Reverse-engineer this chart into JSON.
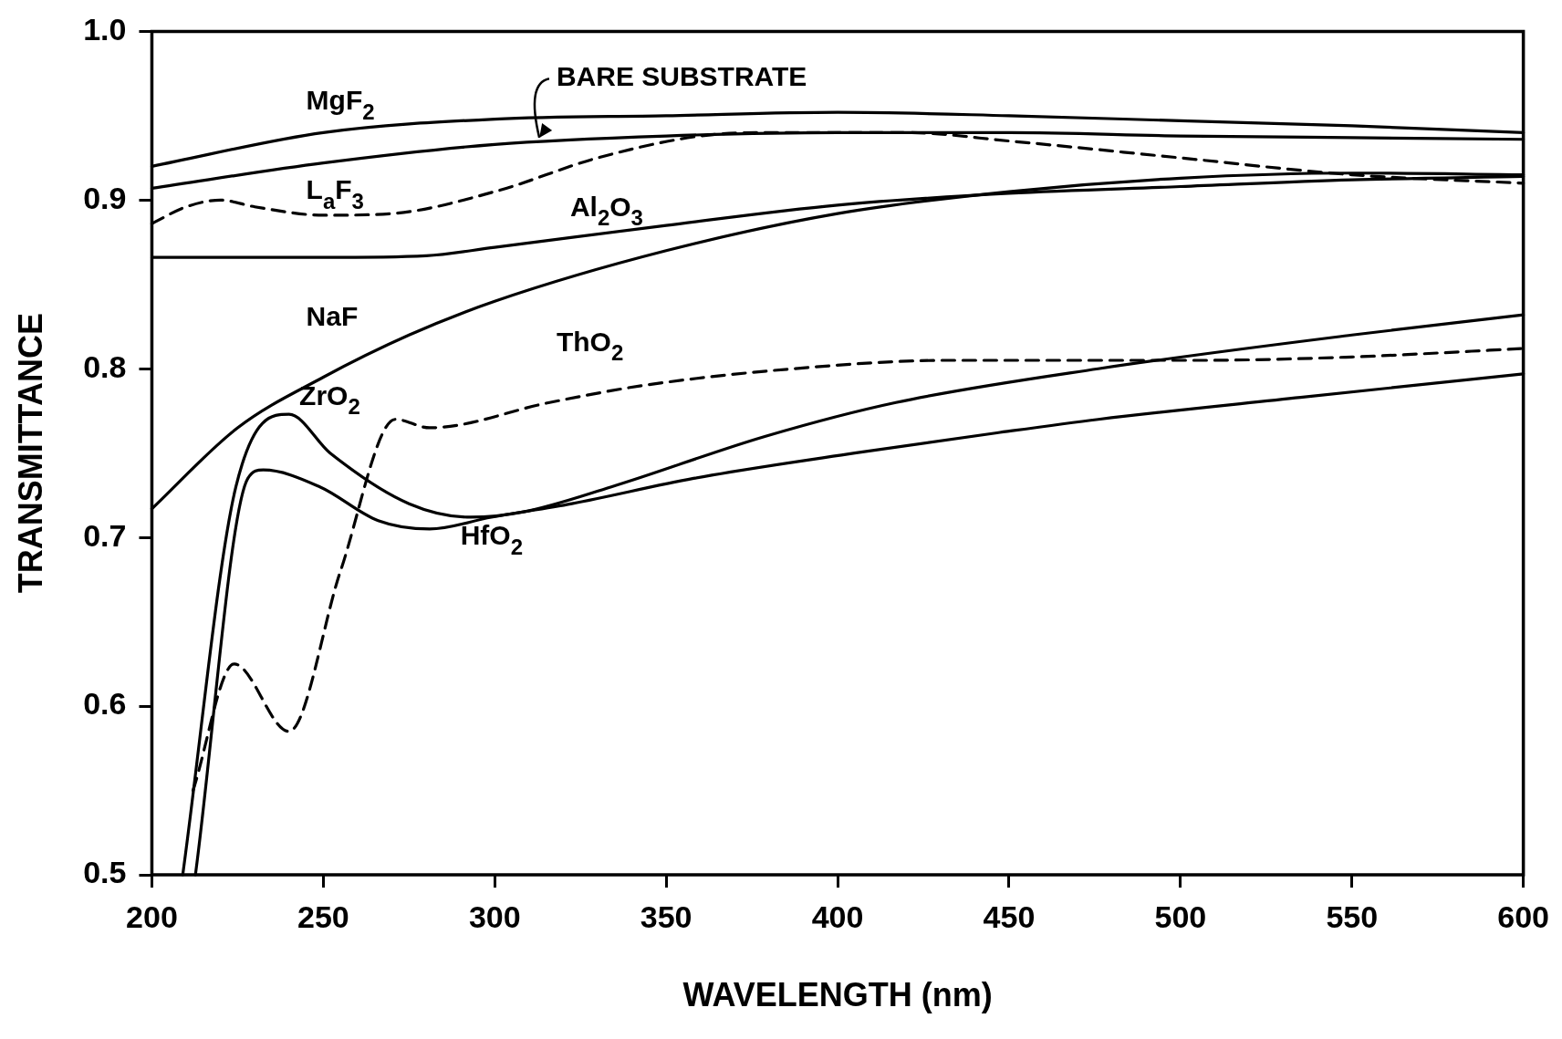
{
  "chart_data": {
    "type": "line",
    "xlabel": "WAVELENGTH (nm)",
    "ylabel": "TRANSMITTANCE",
    "xlim": [
      200,
      600
    ],
    "xticks": [
      200,
      250,
      300,
      350,
      400,
      450,
      500,
      550,
      600
    ],
    "ylim": [
      0.5,
      1.0
    ],
    "yticks": [
      {
        "value": 0.5,
        "label": "0.5"
      },
      {
        "value": 0.6,
        "label": "0.6"
      },
      {
        "value": 0.7,
        "label": "0.7"
      },
      {
        "value": 0.8,
        "label": "0.8"
      },
      {
        "value": 0.9,
        "label": "0.9"
      },
      {
        "value": 1.0,
        "label": "1.0"
      }
    ],
    "grid": false,
    "legend": false,
    "marker": "none",
    "series": [
      {
        "name": "MgF$_{2}$",
        "color": "#000000",
        "line_style": "solid",
        "x": [
          200,
          250,
          300,
          350,
          400,
          450,
          500,
          550,
          600
        ],
        "values": [
          0.92,
          0.94,
          0.948,
          0.95,
          0.952,
          0.95,
          0.947,
          0.944,
          0.94
        ]
      },
      {
        "name": "BARE SUBSTRATE",
        "color": "#000000",
        "line_style": "solid",
        "x": [
          200,
          250,
          300,
          350,
          400,
          450,
          500,
          550,
          600
        ],
        "values": [
          0.907,
          0.922,
          0.933,
          0.938,
          0.94,
          0.94,
          0.938,
          0.937,
          0.936
        ]
      },
      {
        "name": "L$_{a}$F$_{3}$",
        "color": "#000000",
        "line_style": "dashed",
        "x": [
          200,
          210,
          220,
          230,
          250,
          270,
          300,
          330,
          360,
          380,
          420,
          450,
          500,
          550,
          600
        ],
        "values": [
          0.886,
          0.896,
          0.9,
          0.896,
          0.891,
          0.892,
          0.905,
          0.925,
          0.938,
          0.94,
          0.94,
          0.935,
          0.925,
          0.915,
          0.91
        ]
      },
      {
        "name": "Al$_{2}$O$_{3}$",
        "color": "#000000",
        "line_style": "solid",
        "x": [
          200,
          250,
          280,
          300,
          350,
          400,
          450,
          500,
          550,
          600
        ],
        "values": [
          0.866,
          0.866,
          0.867,
          0.872,
          0.885,
          0.897,
          0.904,
          0.908,
          0.912,
          0.914
        ]
      },
      {
        "name": "NaF",
        "color": "#000000",
        "line_style": "solid",
        "x": [
          200,
          225,
          250,
          275,
          300,
          350,
          400,
          450,
          500,
          550,
          600
        ],
        "values": [
          0.717,
          0.765,
          0.795,
          0.82,
          0.84,
          0.87,
          0.892,
          0.905,
          0.913,
          0.916,
          0.915
        ]
      },
      {
        "name": "ThO$_{2}$",
        "color": "#000000",
        "line_style": "dashed",
        "x": [
          212,
          224,
          240,
          255,
          271,
          281,
          316,
          343,
          387,
          432,
          505,
          550,
          600
        ],
        "values": [
          0.55,
          0.625,
          0.585,
          0.68,
          0.77,
          0.765,
          0.78,
          0.79,
          0.8,
          0.805,
          0.805,
          0.807,
          0.812
        ]
      },
      {
        "name": "ZrO$_{2}$",
        "color": "#000000",
        "line_style": "solid",
        "x": [
          209,
          224.5,
          240,
          252,
          275,
          293,
          308,
          334,
          379,
          417,
          476,
          550,
          600
        ],
        "values": [
          0.5,
          0.73,
          0.773,
          0.75,
          0.72,
          0.712,
          0.715,
          0.73,
          0.76,
          0.78,
          0.8,
          0.82,
          0.832
        ]
      },
      {
        "name": "HfO$_{2}$",
        "color": "#000000",
        "line_style": "solid",
        "x": [
          212.7,
          228,
          232.5,
          249,
          266,
          281,
          299,
          322.5,
          358,
          405,
          446.5,
          476,
          535,
          600
        ],
        "values": [
          0.5,
          0.735,
          0.74,
          0.73,
          0.71,
          0.705,
          0.712,
          0.72,
          0.735,
          0.75,
          0.762,
          0.77,
          0.783,
          0.797
        ]
      }
    ]
  }
}
